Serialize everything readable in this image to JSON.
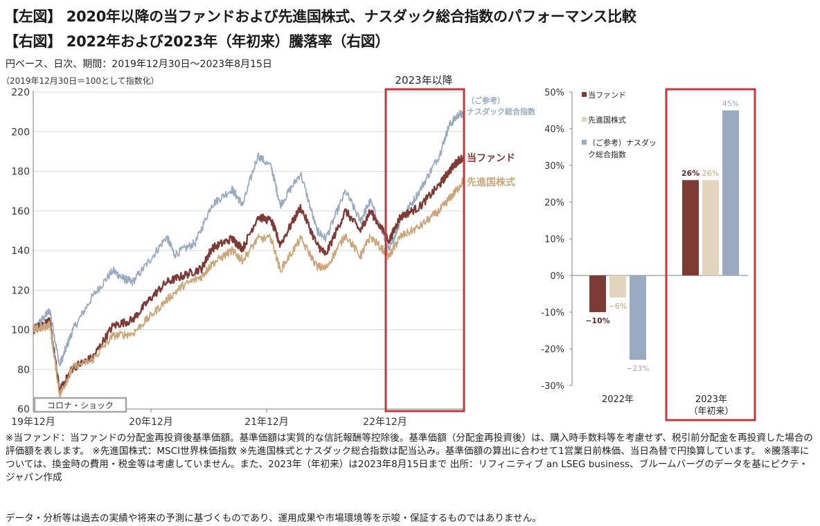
{
  "header": {
    "title_left": "【左図】 2020年以降の当ファンドおよび先進国株式、ナスダック総合指数のパフォーマンス比較",
    "title_right": "【右図】 2022年および2023年（年初来）騰落率（右図）",
    "period": "円ベース、日次、期間：2019年12月30日～2023年8月15日",
    "index_note": "（2019年12月30日＝100として指数化）"
  },
  "chart_data": [
    {
      "type": "line",
      "title": "",
      "xlabel": "",
      "ylabel": "",
      "ylim": [
        60,
        220
      ],
      "yticks": [
        60,
        80,
        100,
        120,
        140,
        160,
        180,
        200,
        220
      ],
      "x_tick_labels": [
        "19年12月",
        "20年12月",
        "21年12月",
        "22年12月"
      ],
      "x_range": [
        "2019-12-30",
        "2023-08-15"
      ],
      "grid": "horizontal",
      "annotations": {
        "highlight_label": "2023年以降",
        "corona_label": "コロナ・ショック"
      },
      "series": [
        {
          "name": "（ご参考）ナスダック総合指数",
          "label_line1": "（ご参考）",
          "label_line2": "ナスダック総合指数",
          "color": "#9aabc1",
          "points": [
            [
              "2019-12-30",
              100
            ],
            [
              "2020-01-31",
              106
            ],
            [
              "2020-02-19",
              110
            ],
            [
              "2020-03-20",
              82
            ],
            [
              "2020-04-30",
              100
            ],
            [
              "2020-06-30",
              117
            ],
            [
              "2020-08-31",
              130
            ],
            [
              "2020-09-30",
              126
            ],
            [
              "2020-10-30",
              124
            ],
            [
              "2020-12-31",
              137
            ],
            [
              "2021-02-12",
              147
            ],
            [
              "2021-03-08",
              138
            ],
            [
              "2021-05-12",
              144
            ],
            [
              "2021-06-30",
              163
            ],
            [
              "2021-08-31",
              171
            ],
            [
              "2021-10-04",
              163
            ],
            [
              "2021-11-19",
              188
            ],
            [
              "2021-12-31",
              182
            ],
            [
              "2022-01-27",
              163
            ],
            [
              "2022-03-31",
              179
            ],
            [
              "2022-05-20",
              150
            ],
            [
              "2022-06-16",
              146
            ],
            [
              "2022-08-16",
              170
            ],
            [
              "2022-09-30",
              155
            ],
            [
              "2022-10-31",
              165
            ],
            [
              "2022-12-28",
              140
            ],
            [
              "2023-01-31",
              155
            ],
            [
              "2023-03-31",
              170
            ],
            [
              "2023-05-31",
              188
            ],
            [
              "2023-06-30",
              203
            ],
            [
              "2023-07-31",
              209
            ],
            [
              "2023-08-15",
              208
            ]
          ]
        },
        {
          "name": "当ファンド",
          "label_line1": "当ファンド",
          "color": "#7e3b36",
          "points": [
            [
              "2019-12-30",
              100
            ],
            [
              "2020-01-31",
              103
            ],
            [
              "2020-02-19",
              104
            ],
            [
              "2020-03-20",
              69
            ],
            [
              "2020-04-30",
              81
            ],
            [
              "2020-06-30",
              86
            ],
            [
              "2020-08-31",
              102
            ],
            [
              "2020-10-30",
              105
            ],
            [
              "2020-12-31",
              117
            ],
            [
              "2021-02-12",
              124
            ],
            [
              "2021-03-31",
              127
            ],
            [
              "2021-05-31",
              131
            ],
            [
              "2021-06-30",
              141
            ],
            [
              "2021-08-31",
              146
            ],
            [
              "2021-10-04",
              141
            ],
            [
              "2021-11-19",
              157
            ],
            [
              "2021-12-31",
              155
            ],
            [
              "2022-01-27",
              143
            ],
            [
              "2022-03-31",
              162
            ],
            [
              "2022-05-20",
              143
            ],
            [
              "2022-06-16",
              138
            ],
            [
              "2022-08-16",
              160
            ],
            [
              "2022-09-30",
              150
            ],
            [
              "2022-10-31",
              160
            ],
            [
              "2022-12-28",
              145
            ],
            [
              "2023-01-31",
              157
            ],
            [
              "2023-03-31",
              162
            ],
            [
              "2023-05-31",
              173
            ],
            [
              "2023-06-30",
              180
            ],
            [
              "2023-07-31",
              186
            ],
            [
              "2023-08-15",
              187
            ]
          ]
        },
        {
          "name": "先進国株式",
          "label_line1": "先進国株式",
          "color": "#c9a77a",
          "points": [
            [
              "2019-12-30",
              100
            ],
            [
              "2020-01-31",
              101
            ],
            [
              "2020-02-19",
              103
            ],
            [
              "2020-03-20",
              67
            ],
            [
              "2020-04-30",
              81
            ],
            [
              "2020-06-30",
              85
            ],
            [
              "2020-08-31",
              97
            ],
            [
              "2020-10-30",
              98
            ],
            [
              "2020-12-31",
              108
            ],
            [
              "2021-02-12",
              115
            ],
            [
              "2021-03-31",
              122
            ],
            [
              "2021-05-31",
              127
            ],
            [
              "2021-06-30",
              133
            ],
            [
              "2021-08-31",
              140
            ],
            [
              "2021-10-04",
              135
            ],
            [
              "2021-11-19",
              146
            ],
            [
              "2021-12-31",
              146
            ],
            [
              "2022-01-27",
              130
            ],
            [
              "2022-03-31",
              146
            ],
            [
              "2022-05-20",
              132
            ],
            [
              "2022-06-16",
              131
            ],
            [
              "2022-08-16",
              148
            ],
            [
              "2022-09-30",
              137
            ],
            [
              "2022-10-31",
              147
            ],
            [
              "2022-12-28",
              137
            ],
            [
              "2023-01-31",
              147
            ],
            [
              "2023-03-31",
              152
            ],
            [
              "2023-05-31",
              160
            ],
            [
              "2023-06-30",
              166
            ],
            [
              "2023-07-31",
              172
            ],
            [
              "2023-08-15",
              176
            ]
          ]
        }
      ]
    },
    {
      "type": "bar",
      "title": "",
      "ylim": [
        -30,
        50
      ],
      "yticks": [
        -30,
        -20,
        -10,
        0,
        10,
        20,
        30,
        40,
        50
      ],
      "ytick_suffix": "%",
      "categories": [
        "2022年",
        "2023年"
      ],
      "category_sub": [
        "",
        "（年初来）"
      ],
      "legend": "top-left",
      "series": [
        {
          "name": "当ファンド",
          "color": "#7e3b36",
          "values": [
            -10,
            26
          ],
          "value_labels": [
            "−10%",
            "26%"
          ],
          "label_color": "#5a2a26"
        },
        {
          "name": "先進国株式",
          "color": "#e3d4bd",
          "values": [
            -6,
            26
          ],
          "value_labels": [
            "−6%",
            "26%"
          ],
          "label_color": "#c9a77a"
        },
        {
          "name": "（ご参考）ナスダック総合指数",
          "legend_line1": "（ご参考）ナスダッ",
          "legend_line2": "ク総合指数",
          "color": "#9aabc1",
          "values": [
            -23,
            45
          ],
          "value_labels": [
            "−23%",
            "45%"
          ],
          "label_color": "#9aabc1"
        }
      ]
    }
  ],
  "colors": {
    "highlight_box": "#c0393b",
    "grid": "#d9d9d9",
    "axis": "#7f7f7f"
  },
  "footnote": "※当ファンド：当ファンドの分配金再投資後基準価額。基準価額は実質的な信託報酬等控除後。基準価額（分配金再投資後）は、購入時手数料等を考慮せず、税引前分配金を再投資した場合の評価額を表します。 ※先進国株式：MSCI世界株価指数 ※先進国株式とナスダック総合指数は配当込み。基準価額の算出に合わせて1営業日前株価、当日為替で円換算しています。 ※騰落率については、換金時の費用・税金等は考慮していません。また、2023年（年初来）は2023年8月15日まで 出所：リフィニティブ an LSEG business、ブルームバーグのデータを基にピクテ・ジャパン作成",
  "disclaimer": "データ・分析等は過去の実績や将来の予測に基づくものであり、運用成果や市場環境等を示唆・保証するものではありません。"
}
